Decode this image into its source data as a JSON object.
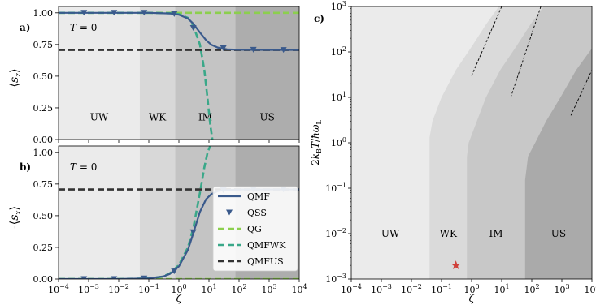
{
  "chart_data": [
    {
      "panel": "a)",
      "type": "line",
      "annotation": "T = 0",
      "xlabel": "",
      "ylabel": "⟨s_z⟩",
      "xscale": "log",
      "xlim": [
        0.0001,
        10000
      ],
      "ylim": [
        0,
        1.05
      ],
      "yticks": [
        "0.00",
        "0.25",
        "0.50",
        "0.75",
        "1.00"
      ],
      "x_tick_labels_shown": false,
      "regions": [
        {
          "label": "UW",
          "from": 0.0001,
          "to": 0.05,
          "color": "#ebebeb"
        },
        {
          "label": "WK",
          "from": 0.05,
          "to": 0.75,
          "color": "#d8d8d8"
        },
        {
          "label": "IM",
          "from": 0.75,
          "to": 75,
          "color": "#c4c4c4"
        },
        {
          "label": "US",
          "from": 75,
          "to": 10000,
          "color": "#adadad"
        }
      ],
      "series": [
        {
          "name": "QMF",
          "style": "solid",
          "color": "#3a5a8c",
          "x": [
            0.0001,
            0.01,
            0.1,
            0.5,
            1,
            2,
            3,
            5,
            8,
            12,
            20,
            40,
            80,
            200,
            1000,
            10000
          ],
          "y": [
            1.0,
            1.0,
            1.0,
            0.995,
            0.985,
            0.955,
            0.915,
            0.845,
            0.785,
            0.748,
            0.725,
            0.712,
            0.709,
            0.708,
            0.707,
            0.707
          ]
        },
        {
          "name": "QSS",
          "style": "marker",
          "color": "#3a5a8c",
          "x": [
            0.0007,
            0.007,
            0.07,
            0.7,
            3.0,
            30,
            300,
            3000
          ],
          "y": [
            1.0,
            1.0,
            1.0,
            0.99,
            0.88,
            0.72,
            0.708,
            0.707
          ]
        },
        {
          "name": "QG",
          "style": "dashed",
          "color": "#8ccf4e",
          "x": [
            0.0001,
            10000
          ],
          "y": [
            1.0,
            1.0
          ]
        },
        {
          "name": "QMFWK",
          "style": "dashed",
          "color": "#3aa889",
          "x": [
            0.0001,
            0.01,
            0.1,
            0.5,
            1,
            2,
            3,
            5,
            7,
            9,
            11,
            13
          ],
          "y": [
            1.0,
            1.0,
            1.0,
            0.997,
            0.99,
            0.96,
            0.9,
            0.75,
            0.55,
            0.32,
            0.12,
            0.0
          ]
        },
        {
          "name": "QMFUS",
          "style": "dashed",
          "color": "#333333",
          "x": [
            0.0001,
            10000
          ],
          "y": [
            0.707,
            0.707
          ]
        }
      ]
    },
    {
      "panel": "b)",
      "type": "line",
      "annotation": "T = 0",
      "xlabel": "ζ",
      "ylabel": "-⟨s_x⟩",
      "xscale": "log",
      "xlim": [
        0.0001,
        10000
      ],
      "ylim": [
        0,
        1.05
      ],
      "yticks": [
        "0.00",
        "0.25",
        "0.50",
        "0.75",
        "1.00"
      ],
      "xticks": [
        "10^-4",
        "10^-3",
        "10^-2",
        "10^-1",
        "10^0",
        "10^1",
        "10^2",
        "10^3",
        "10^4"
      ],
      "legend_position": "lower-right",
      "legend": [
        "QMF",
        "QSS",
        "QG",
        "QMFWK",
        "QMFUS"
      ],
      "regions": [
        {
          "label": "",
          "from": 0.0001,
          "to": 0.05,
          "color": "#ebebeb"
        },
        {
          "label": "",
          "from": 0.05,
          "to": 0.75,
          "color": "#d8d8d8"
        },
        {
          "label": "",
          "from": 0.75,
          "to": 75,
          "color": "#c4c4c4"
        },
        {
          "label": "",
          "from": 75,
          "to": 10000,
          "color": "#adadad"
        }
      ],
      "series": [
        {
          "name": "QMF",
          "style": "solid",
          "color": "#3a5a8c",
          "x": [
            0.0001,
            0.01,
            0.1,
            0.3,
            0.5,
            1,
            2,
            3,
            5,
            8,
            12,
            20,
            40,
            80,
            200,
            1000,
            10000
          ],
          "y": [
            0.0,
            0.0,
            0.005,
            0.02,
            0.04,
            0.1,
            0.23,
            0.36,
            0.53,
            0.63,
            0.67,
            0.695,
            0.703,
            0.706,
            0.707,
            0.707,
            0.707
          ]
        },
        {
          "name": "QSS",
          "style": "marker",
          "color": "#3a5a8c",
          "x": [
            0.0007,
            0.007,
            0.07,
            0.7,
            3.0,
            30,
            300,
            3000
          ],
          "y": [
            0.0,
            0.0,
            0.005,
            0.06,
            0.37,
            0.7,
            0.707,
            0.707
          ]
        },
        {
          "name": "QG",
          "style": "dashed",
          "color": "#8ccf4e",
          "x": [
            0.0001,
            10000
          ],
          "y": [
            0.0,
            0.0
          ]
        },
        {
          "name": "QMFWK",
          "style": "dashed",
          "color": "#3aa889",
          "x": [
            0.0001,
            0.01,
            0.1,
            0.3,
            0.5,
            1,
            2,
            3,
            5,
            7,
            9,
            11
          ],
          "y": [
            0.0,
            0.0,
            0.005,
            0.02,
            0.045,
            0.11,
            0.25,
            0.4,
            0.68,
            0.88,
            1.0,
            1.05
          ]
        },
        {
          "name": "QMFUS",
          "style": "dashed",
          "color": "#333333",
          "x": [
            0.0001,
            10000
          ],
          "y": [
            0.707,
            0.707
          ]
        }
      ]
    },
    {
      "panel": "c)",
      "type": "area",
      "xlabel": "ζ",
      "ylabel": "2k_BT/ħω_L",
      "xscale": "log",
      "yscale": "log",
      "xlim": [
        0.0001,
        10000
      ],
      "ylim": [
        0.001,
        1000
      ],
      "xticks": [
        "10^-4",
        "10^-3",
        "10^-2",
        "10^-1",
        "10^0",
        "10^1",
        "10^2",
        "10^3",
        "10^4"
      ],
      "yticks": [
        "10^-3",
        "10^-2",
        "10^-1",
        "10^0",
        "10^1",
        "10^2",
        "10^3"
      ],
      "regions": [
        {
          "label": "UW",
          "color": "#ebebeb"
        },
        {
          "label": "WK",
          "color": "#dadada"
        },
        {
          "label": "IM",
          "color": "#c8c8c8"
        },
        {
          "label": "US",
          "color": "#aaaaaa"
        }
      ],
      "boundaries": [
        {
          "name": "UW/WK",
          "zeta_low_T": 0.04,
          "points": [
            [
              0.04,
              0.001
            ],
            [
              0.04,
              1.3
            ],
            [
              0.05,
              3
            ],
            [
              0.1,
              10
            ],
            [
              0.3,
              40
            ],
            [
              1,
              130
            ],
            [
              3,
              400
            ],
            [
              8,
              1000
            ]
          ]
        },
        {
          "name": "WK/IM",
          "zeta_low_T": 0.7,
          "points": [
            [
              0.7,
              0.001
            ],
            [
              0.7,
              0.5
            ],
            [
              0.8,
              1
            ],
            [
              1.5,
              3
            ],
            [
              3,
              10
            ],
            [
              9,
              40
            ],
            [
              30,
              130
            ],
            [
              90,
              400
            ],
            [
              250,
              1000
            ]
          ]
        },
        {
          "name": "IM/US",
          "zeta_low_T": 60,
          "points": [
            [
              60,
              0.001
            ],
            [
              60,
              0.15
            ],
            [
              75,
              0.5
            ],
            [
              130,
              1
            ],
            [
              300,
              3
            ],
            [
              900,
              10
            ],
            [
              3000,
              40
            ],
            [
              10000,
              120
            ]
          ]
        }
      ],
      "asymptotes": [
        {
          "points": [
            [
              1,
              30
            ],
            [
              10,
              1000
            ]
          ]
        },
        {
          "points": [
            [
              20,
              10
            ],
            [
              200,
              1000
            ]
          ]
        },
        {
          "points": [
            [
              2000,
              4
            ],
            [
              10000,
              40
            ]
          ]
        }
      ],
      "marker": {
        "shape": "star",
        "color": "#d0403a",
        "x": 0.3,
        "y": 0.002
      }
    }
  ]
}
